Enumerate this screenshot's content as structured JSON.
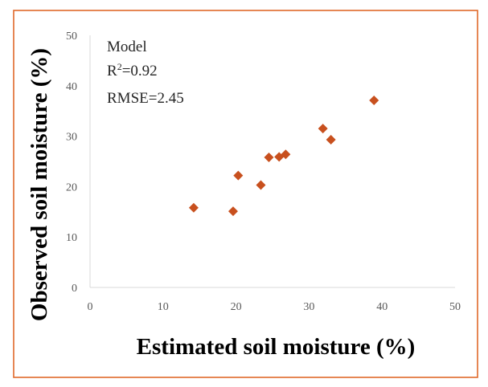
{
  "chart_data": {
    "type": "scatter",
    "title": "",
    "xlabel": "Estimated soil moisture (%)",
    "ylabel": "Observed soil moisture (%)",
    "xlim": [
      0,
      50
    ],
    "ylim": [
      0,
      50
    ],
    "xticks": [
      "0",
      "10",
      "20",
      "30",
      "40",
      "50"
    ],
    "yticks": [
      "0",
      "10",
      "20",
      "30",
      "40",
      "50"
    ],
    "grid": false,
    "marker": "diamond",
    "marker_color": "#c8501e",
    "frame_color": "#e0692a",
    "annotation": {
      "model": "Model",
      "r2_prefix": "R",
      "r2_sup": "2",
      "r2_value": "=0.92",
      "rmse": "RMSE=2.45"
    },
    "series": [
      {
        "x": [
          14.2,
          19.6,
          20.3,
          23.4,
          24.5,
          25.9,
          26.8,
          31.9,
          33.0,
          38.9
        ],
        "y": [
          15.8,
          15.1,
          22.2,
          20.3,
          25.8,
          25.9,
          26.4,
          31.5,
          29.3,
          37.1
        ]
      }
    ]
  }
}
